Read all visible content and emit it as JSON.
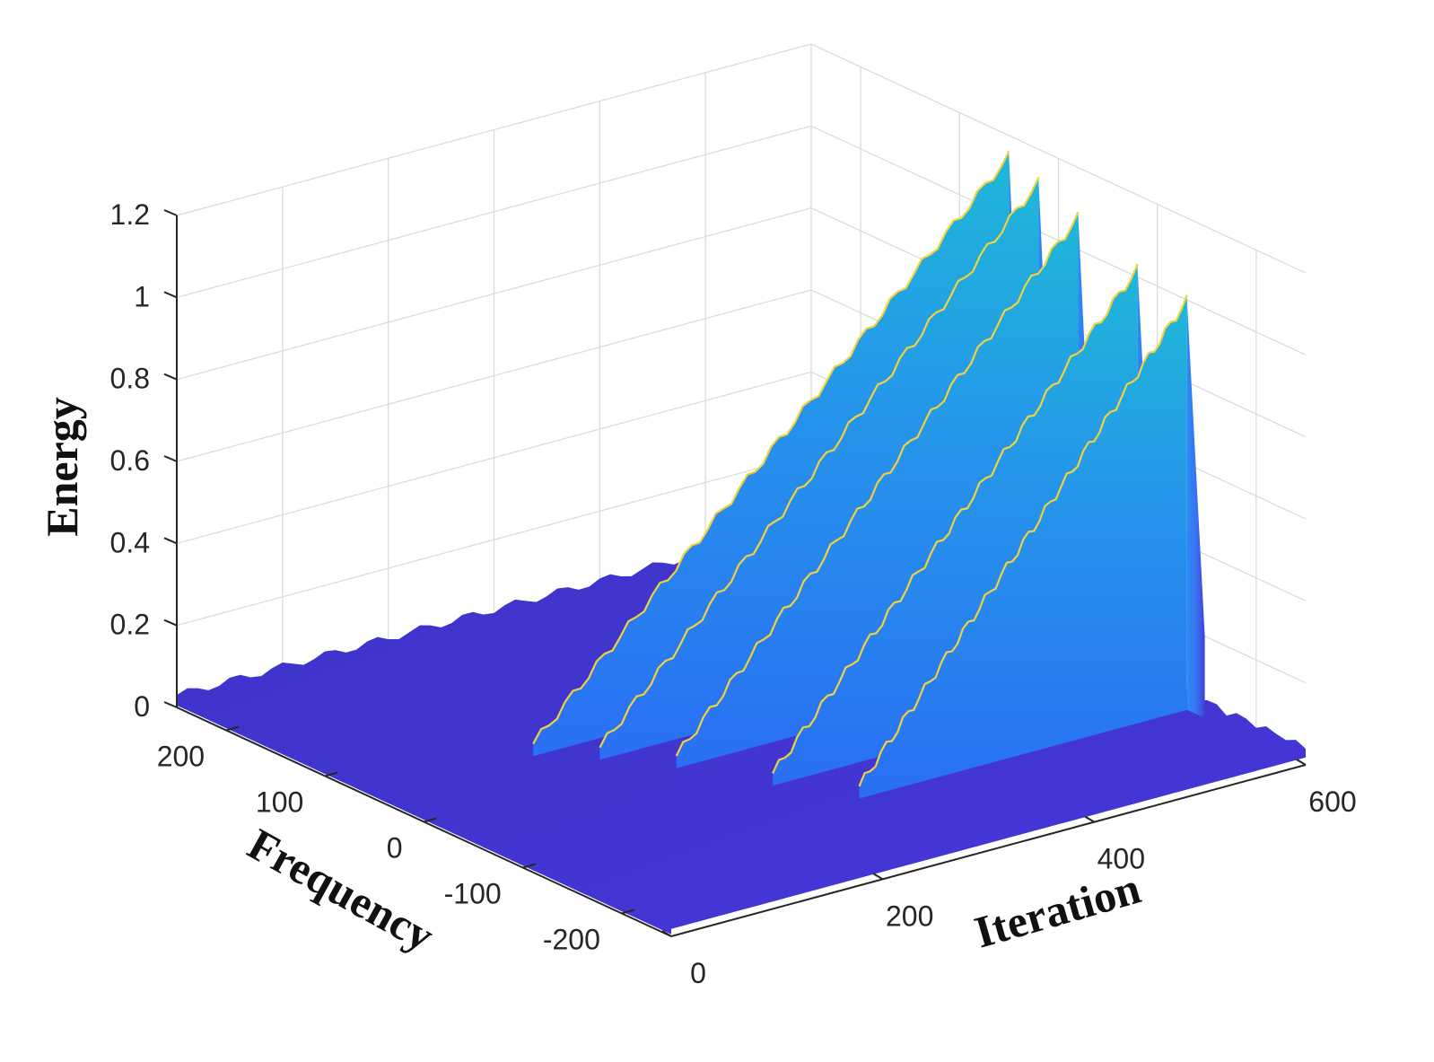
{
  "chart_data": {
    "type": "surface",
    "title": "",
    "xlabel": "Iteration",
    "ylabel": "Frequency",
    "zlabel": "Energy",
    "xlim": [
      0,
      600
    ],
    "ylim": [
      -250,
      250
    ],
    "zlim": [
      0,
      1.2
    ],
    "x_ticks": [
      "0",
      "200",
      "400",
      "600"
    ],
    "y_ticks": [
      "200",
      "100",
      "0",
      "-100",
      "-200"
    ],
    "z_ticks": [
      "0",
      "0.2",
      "0.4",
      "0.6",
      "0.8",
      "1",
      "1.2"
    ],
    "grid": true,
    "colormap": [
      "#3e26a8",
      "#4743e8",
      "#2c7ffa",
      "#20a3e6",
      "#31d0a0",
      "#e0c030",
      "#f9fb0e"
    ],
    "series": [
      {
        "frequency": 50,
        "peak_energy": 1.15,
        "peak_iteration": 600
      },
      {
        "frequency": 20,
        "peak_energy": 1.12,
        "peak_iteration": 600
      },
      {
        "frequency": -20,
        "peak_energy": 1.08,
        "peak_iteration": 600
      },
      {
        "frequency": -80,
        "peak_energy": 1.02,
        "peak_iteration": 600
      },
      {
        "frequency": -130,
        "peak_energy": 1.0,
        "peak_iteration": 600
      }
    ],
    "background_level": 0.03
  }
}
